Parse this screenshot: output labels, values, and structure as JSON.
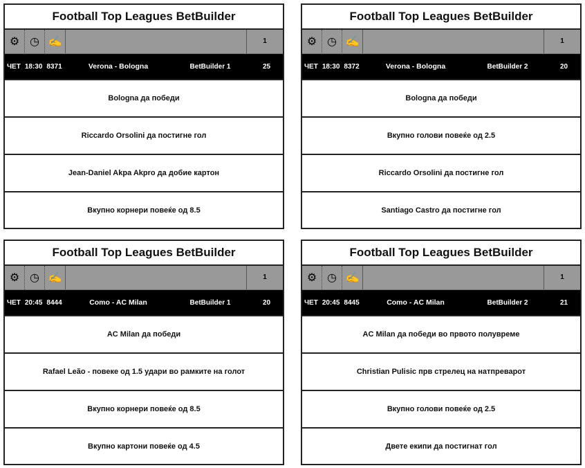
{
  "cards": [
    {
      "title": "Football Top Leagues BetBuilder",
      "page": "1",
      "day": "ЧЕТ",
      "time": "18:30",
      "code": "8371",
      "match": "Verona - Bologna",
      "builder": "BetBuilder 1",
      "odds": "25",
      "selections": [
        "Bologna да победи",
        "Riccardo Orsolini да постигне гол",
        "Jean-Daniel Akpa Akpro да добие картон",
        "Вкупно корнери повеќе од 8.5"
      ]
    },
    {
      "title": "Football Top Leagues BetBuilder",
      "page": "1",
      "day": "ЧЕТ",
      "time": "18:30",
      "code": "8372",
      "match": "Verona - Bologna",
      "builder": "BetBuilder 2",
      "odds": "20",
      "selections": [
        "Bologna да победи",
        "Вкупно голови повеќе од 2.5",
        "Riccardo Orsolini да постигне гол",
        "Santiago Castro да постигне гол"
      ]
    },
    {
      "title": "Football Top Leagues BetBuilder",
      "page": "1",
      "day": "ЧЕТ",
      "time": "20:45",
      "code": "8444",
      "match": "Como - AC Milan",
      "builder": "BetBuilder 1",
      "odds": "20",
      "selections": [
        "AC Milan да победи",
        "Rafael Leão - повеке од 1.5 удари во рамките на голот",
        "Вкупно корнери повеќе од 8.5",
        "Вкупно картони повеќе од 4.5"
      ]
    },
    {
      "title": "Football Top Leagues BetBuilder",
      "page": "1",
      "day": "ЧЕТ",
      "time": "20:45",
      "code": "8445",
      "match": "Como - AC Milan",
      "builder": "BetBuilder 2",
      "odds": "21",
      "selections": [
        "AC Milan да победи во првото полувреме",
        "Christian Pulisic прв стрелец на натпреварот",
        "Вкупно голови повеќе од 2.5",
        "Двете екипи да постигнат гол"
      ]
    }
  ],
  "icons": [
    "gear-icon",
    "clock-icon",
    "pen-icon"
  ]
}
